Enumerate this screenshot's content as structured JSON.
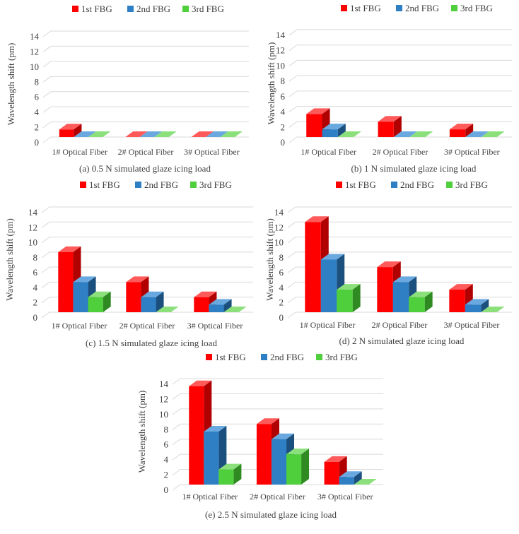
{
  "chart_data": [
    {
      "type": "bar",
      "caption": "(a) 0.5 N simulated glaze icing load",
      "ylabel": "Wavelength shift (pm)",
      "ylim": [
        0,
        14
      ],
      "yticks": [
        0,
        2,
        4,
        6,
        8,
        10,
        12,
        14
      ],
      "grid": true,
      "legend_position": "top",
      "categories": [
        "1# Optical Fiber",
        "2# Optical Fiber",
        "3# Optical Fiber"
      ],
      "series": [
        {
          "name": "1st FBG",
          "values": [
            1,
            0,
            0
          ]
        },
        {
          "name": "2nd FBG",
          "values": [
            0,
            0,
            0
          ]
        },
        {
          "name": "3rd FBG",
          "values": [
            0,
            0,
            0
          ]
        }
      ]
    },
    {
      "type": "bar",
      "caption": "(b) 1 N simulated glaze icing load",
      "ylabel": "Wavelength shift (pm)",
      "ylim": [
        0,
        14
      ],
      "yticks": [
        0,
        2,
        4,
        6,
        8,
        10,
        12,
        14
      ],
      "grid": true,
      "legend_position": "top",
      "categories": [
        "1# Optical Fiber",
        "2# Optical Fiber",
        "3# Optical Fiber"
      ],
      "series": [
        {
          "name": "1st FBG",
          "values": [
            3,
            2,
            1
          ]
        },
        {
          "name": "2nd FBG",
          "values": [
            1,
            0,
            0
          ]
        },
        {
          "name": "3rd FBG",
          "values": [
            0,
            0,
            0
          ]
        }
      ]
    },
    {
      "type": "bar",
      "caption": "(c) 1.5 N simulated glaze icing load",
      "ylabel": "Wavelength shift (pm)",
      "ylim": [
        0,
        14
      ],
      "yticks": [
        0,
        2,
        4,
        6,
        8,
        10,
        12,
        14
      ],
      "grid": true,
      "legend_position": "top",
      "categories": [
        "1# Optical Fiber",
        "2# Optical Fiber",
        "3# Optical Fiber"
      ],
      "series": [
        {
          "name": "1st FBG",
          "values": [
            8,
            4,
            2
          ]
        },
        {
          "name": "2nd FBG",
          "values": [
            4,
            2,
            1
          ]
        },
        {
          "name": "3rd FBG",
          "values": [
            2,
            0,
            0
          ]
        }
      ]
    },
    {
      "type": "bar",
      "caption": "(d) 2 N simulated glaze icing load",
      "ylabel": "Wavelength shift (pm)",
      "ylim": [
        0,
        14
      ],
      "yticks": [
        0,
        2,
        4,
        6,
        8,
        10,
        12,
        14
      ],
      "grid": true,
      "legend_position": "top",
      "categories": [
        "1# Optical Fiber",
        "2# Optical Fiber",
        "3# Optical Fiber"
      ],
      "series": [
        {
          "name": "1st FBG",
          "values": [
            12,
            6,
            3
          ]
        },
        {
          "name": "2nd FBG",
          "values": [
            7,
            4,
            1
          ]
        },
        {
          "name": "3rd FBG",
          "values": [
            3,
            2,
            0
          ]
        }
      ]
    },
    {
      "type": "bar",
      "caption": "(e) 2.5 N simulated glaze icing load",
      "ylabel": "Wavelength shift (pm)",
      "ylim": [
        0,
        14
      ],
      "yticks": [
        0,
        2,
        4,
        6,
        8,
        10,
        12,
        14
      ],
      "grid": true,
      "legend_position": "top",
      "categories": [
        "1# Optical Fiber",
        "2# Optical Fiber",
        "3# Optical Fiber"
      ],
      "series": [
        {
          "name": "1st FBG",
          "values": [
            13,
            8,
            3
          ]
        },
        {
          "name": "2nd FBG",
          "values": [
            7,
            6,
            1
          ]
        },
        {
          "name": "3rd FBG",
          "values": [
            2,
            4,
            0
          ]
        }
      ]
    }
  ],
  "colors": {
    "series": [
      "#ff0000",
      "#2e7fc4",
      "#4fcf3c"
    ],
    "series_side": [
      "#b00000",
      "#1b4f7e",
      "#2f8a22"
    ],
    "series_top": [
      "#ff5a5a",
      "#6aa9df",
      "#8be07b"
    ],
    "grid": "#d9d9d9",
    "text": "#404040"
  }
}
